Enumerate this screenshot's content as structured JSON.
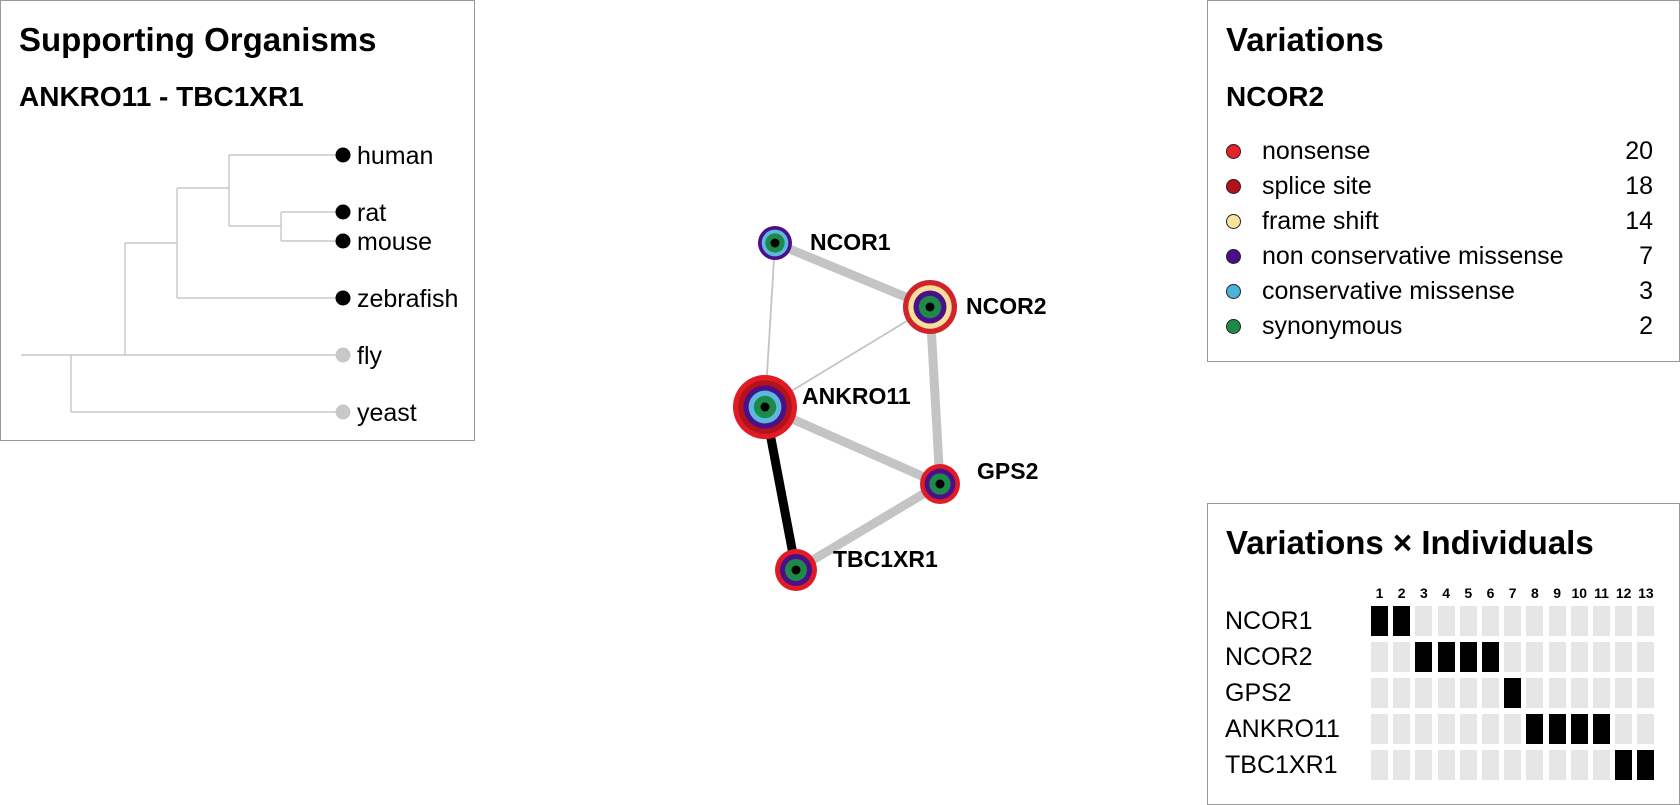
{
  "organisms_panel": {
    "title": "Supporting Organisms",
    "subtitle": "ANKRO11 - TBC1XR1",
    "organisms": [
      {
        "name": "human",
        "supported": true
      },
      {
        "name": "rat",
        "supported": true
      },
      {
        "name": "mouse",
        "supported": true
      },
      {
        "name": "zebrafish",
        "supported": true
      },
      {
        "name": "fly",
        "supported": false
      },
      {
        "name": "yeast",
        "supported": false
      }
    ],
    "colors": {
      "supported": "#000000",
      "unsupported": "#c8c8c8",
      "branch": "#bdbdbd"
    }
  },
  "network": {
    "nodes": [
      {
        "id": "NCOR1",
        "label": "NCOR1",
        "rings": [
          "#4b0f8a",
          "#5bb8de",
          "#1e8a4a"
        ]
      },
      {
        "id": "NCOR2",
        "label": "NCOR2",
        "rings": [
          "#d1232a",
          "#f5df9a",
          "#4b0f8a",
          "#1e8a4a"
        ]
      },
      {
        "id": "ANKRO11",
        "label": "ANKRO11",
        "rings": [
          "#e01b24",
          "#b3121a",
          "#4b0f8a",
          "#5bb8de",
          "#1e8a4a"
        ]
      },
      {
        "id": "GPS2",
        "label": "GPS2",
        "rings": [
          "#e01b24",
          "#4b0f8a",
          "#1e8a4a"
        ]
      },
      {
        "id": "TBC1XR1",
        "label": "TBC1XR1",
        "rings": [
          "#e01b24",
          "#4b0f8a",
          "#1e8a4a"
        ]
      }
    ],
    "edges": [
      {
        "source": "NCOR1",
        "target": "NCOR2",
        "strength": "strong"
      },
      {
        "source": "NCOR1",
        "target": "ANKRO11",
        "strength": "weak"
      },
      {
        "source": "NCOR2",
        "target": "ANKRO11",
        "strength": "weak"
      },
      {
        "source": "NCOR2",
        "target": "GPS2",
        "strength": "strong"
      },
      {
        "source": "ANKRO11",
        "target": "GPS2",
        "strength": "strong"
      },
      {
        "source": "ANKRO11",
        "target": "TBC1XR1",
        "strength": "selected"
      },
      {
        "source": "GPS2",
        "target": "TBC1XR1",
        "strength": "strong"
      }
    ]
  },
  "variations_panel": {
    "title": "Variations",
    "gene": "NCOR2",
    "items": [
      {
        "label": "nonsense",
        "count": "20",
        "color": "#e8222a"
      },
      {
        "label": "splice site",
        "count": "18",
        "color": "#b3121a"
      },
      {
        "label": "frame shift",
        "count": "14",
        "color": "#f7e39a"
      },
      {
        "label": "non conservative missense",
        "count": "7",
        "color": "#4b0f8a"
      },
      {
        "label": "conservative missense",
        "count": "3",
        "color": "#4ab3d9"
      },
      {
        "label": "synonymous",
        "count": "2",
        "color": "#1e8a4a"
      }
    ]
  },
  "matrix_panel": {
    "title": "Variations × Individuals",
    "columns": [
      "1",
      "2",
      "3",
      "4",
      "5",
      "6",
      "7",
      "8",
      "9",
      "10",
      "11",
      "12",
      "13"
    ],
    "rows": [
      {
        "label": "NCOR1",
        "cells": [
          1,
          1,
          0,
          0,
          0,
          0,
          0,
          0,
          0,
          0,
          0,
          0,
          0
        ]
      },
      {
        "label": "NCOR2",
        "cells": [
          0,
          0,
          1,
          1,
          1,
          1,
          0,
          0,
          0,
          0,
          0,
          0,
          0
        ]
      },
      {
        "label": "GPS2",
        "cells": [
          0,
          0,
          0,
          0,
          0,
          0,
          1,
          0,
          0,
          0,
          0,
          0,
          0
        ]
      },
      {
        "label": "ANKRO11",
        "cells": [
          0,
          0,
          0,
          0,
          0,
          0,
          0,
          1,
          1,
          1,
          1,
          0,
          0
        ]
      },
      {
        "label": "TBC1XR1",
        "cells": [
          0,
          0,
          0,
          0,
          0,
          0,
          0,
          0,
          0,
          0,
          0,
          1,
          1
        ]
      }
    ],
    "colors": {
      "on": "#000000",
      "off": "#e6e6e6"
    }
  }
}
